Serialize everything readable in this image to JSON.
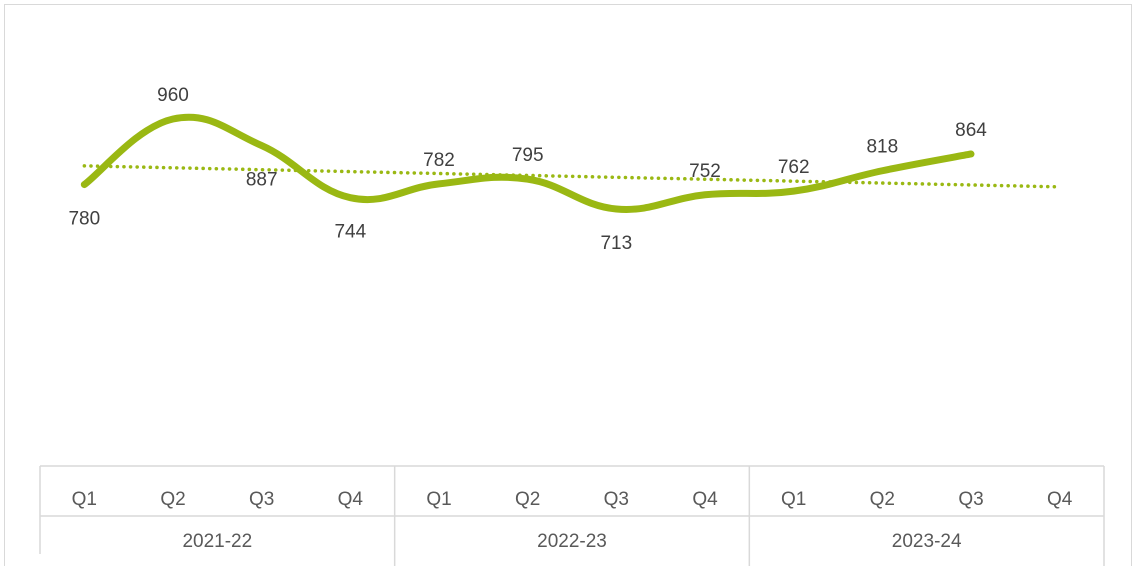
{
  "chart_data": {
    "type": "line",
    "title": "",
    "xlabel": "",
    "ylabel": "",
    "groups": [
      {
        "label": "2021-22",
        "quarters": [
          "Q1",
          "Q2",
          "Q3",
          "Q4"
        ]
      },
      {
        "label": "2022-23",
        "quarters": [
          "Q1",
          "Q2",
          "Q3",
          "Q4"
        ]
      },
      {
        "label": "2023-24",
        "quarters": [
          "Q1",
          "Q2",
          "Q3",
          "Q4"
        ]
      }
    ],
    "series": [
      {
        "values": [
          780,
          960,
          887,
          744,
          782,
          795,
          713,
          752,
          762,
          818,
          864,
          null
        ],
        "color": "#9ab813",
        "smooth": true
      }
    ],
    "trendline": {
      "type": "linear",
      "style": "dotted",
      "color": "#9ab813"
    },
    "data_labels": true,
    "grid": false,
    "legend": "none"
  }
}
